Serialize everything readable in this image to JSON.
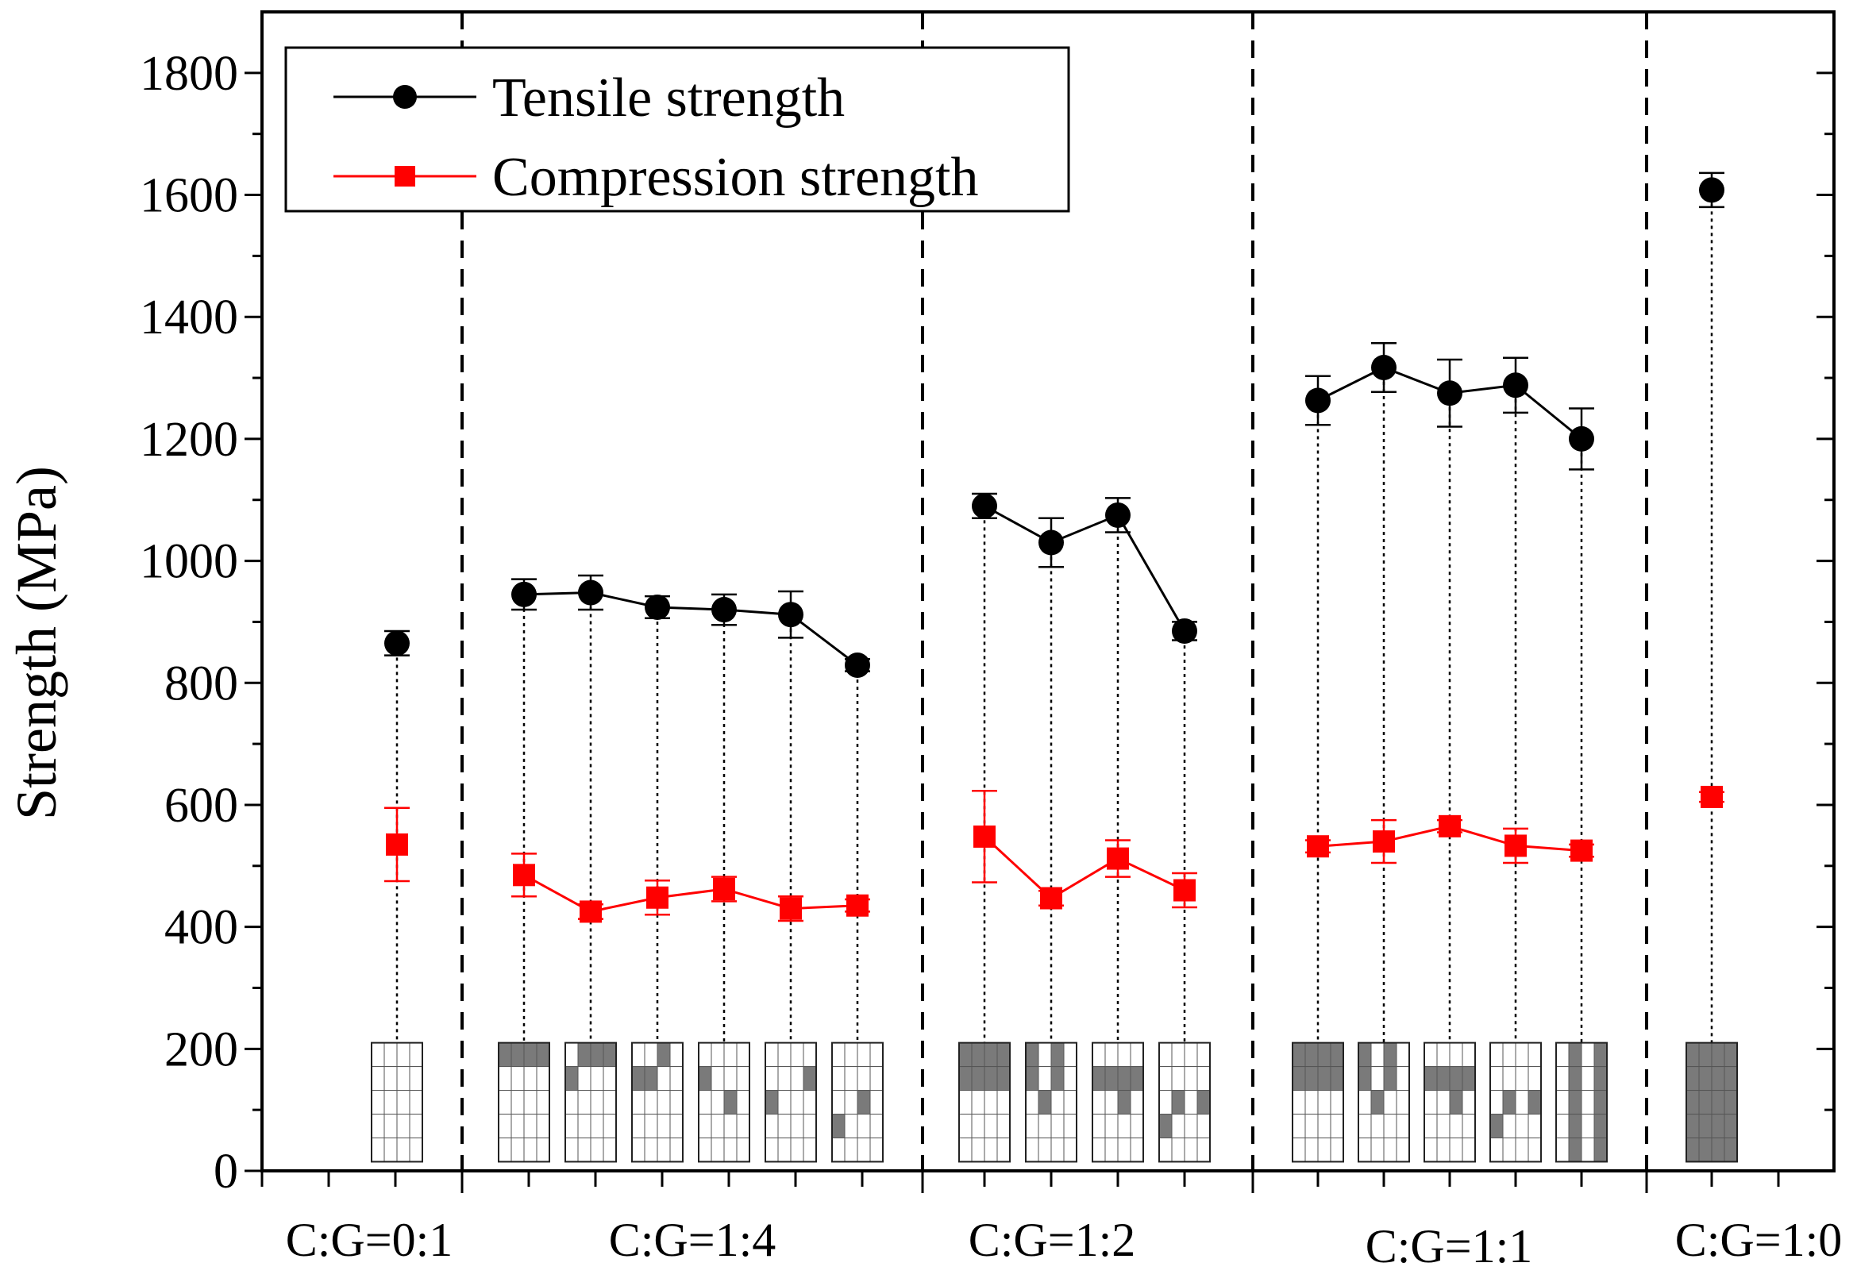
{
  "chart_data": {
    "type": "line",
    "title": "",
    "xlabel": "",
    "ylabel": "Strength (MPa)",
    "ylim": [
      0,
      1900
    ],
    "yticks": [
      0,
      200,
      400,
      600,
      800,
      1000,
      1200,
      1400,
      1600,
      1800
    ],
    "legend_position": "top-left",
    "groups": [
      {
        "label": "C:G=0:1",
        "sample_indices": [
          0
        ]
      },
      {
        "label": "C:G=1:4",
        "sample_indices": [
          1,
          2,
          3,
          4,
          5,
          6
        ]
      },
      {
        "label": "C:G=1:2",
        "sample_indices": [
          7,
          8,
          9,
          10
        ]
      },
      {
        "label": "C:G=1:1",
        "sample_indices": [
          11,
          12,
          13,
          14,
          15
        ]
      },
      {
        "label": "C:G=1:0",
        "sample_indices": [
          16
        ]
      }
    ],
    "series": [
      {
        "name": "Tensile strength",
        "color": "#000000",
        "marker": "circle",
        "values": [
          865,
          945,
          948,
          924,
          920,
          912,
          829,
          1090,
          1030,
          1075,
          885,
          1263,
          1317,
          1275,
          1288,
          1200,
          1608
        ],
        "errors": [
          20,
          25,
          28,
          18,
          25,
          38,
          10,
          20,
          40,
          28,
          15,
          40,
          40,
          55,
          45,
          50,
          28
        ]
      },
      {
        "name": "Compression strength",
        "color": "#ff0000",
        "marker": "square",
        "values": [
          535,
          485,
          425,
          448,
          462,
          430,
          435,
          548,
          447,
          512,
          460,
          532,
          540,
          565,
          533,
          525,
          613
        ],
        "errors": [
          60,
          35,
          12,
          28,
          20,
          20,
          10,
          75,
          12,
          30,
          28,
          10,
          35,
          10,
          28,
          10,
          8
        ]
      }
    ]
  }
}
